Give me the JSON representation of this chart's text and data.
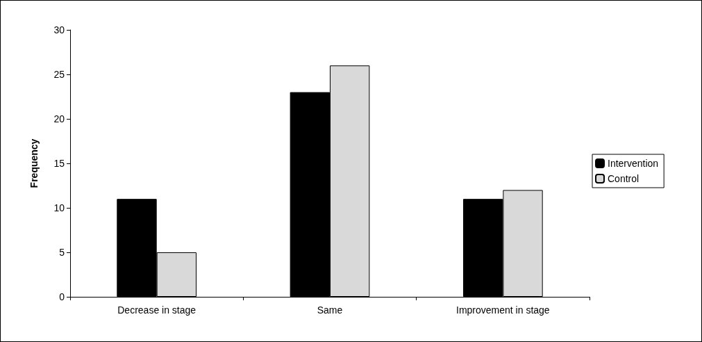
{
  "chart_data": {
    "type": "bar",
    "ylabel": "Frequency",
    "categories": [
      "Decrease in stage",
      "Same",
      "Improvement in stage"
    ],
    "series": [
      {
        "name": "Intervention",
        "color": "#000000",
        "values": [
          11,
          23,
          11
        ]
      },
      {
        "name": "Control",
        "color": "#d9d9d9",
        "values": [
          5,
          26,
          12
        ]
      }
    ],
    "ylim": [
      0,
      30
    ],
    "yticks": [
      0,
      5,
      10,
      15,
      20,
      25,
      30
    ],
    "grid": false,
    "legend": "right"
  }
}
